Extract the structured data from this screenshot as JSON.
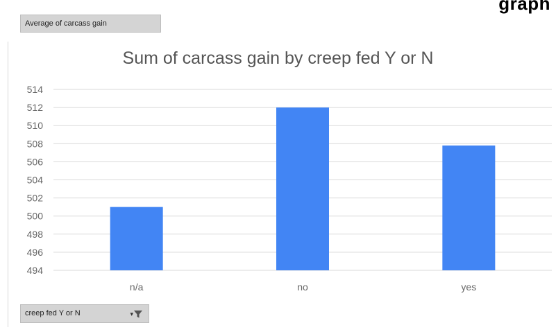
{
  "header_fragment": "graph",
  "value_field": {
    "label": "Average of carcass gain"
  },
  "axis_field": {
    "label": "creep fed Y or N",
    "icon": "filter-icon",
    "dropdown_icon": "chevron-down-icon"
  },
  "colors": {
    "bar": "#4285f4",
    "grid": "#d9d9d9",
    "title": "#555555"
  },
  "chart_data": {
    "type": "bar",
    "title": "Sum of carcass gain by creep fed Y or N",
    "categories": [
      "n/a",
      "no",
      "yes"
    ],
    "values": [
      501,
      512,
      507.8
    ],
    "ylim": [
      494,
      514
    ],
    "yticks": [
      494,
      496,
      498,
      500,
      502,
      504,
      506,
      508,
      510,
      512,
      514
    ],
    "xlabel": "",
    "ylabel": "",
    "grid": true,
    "legend": "none"
  }
}
